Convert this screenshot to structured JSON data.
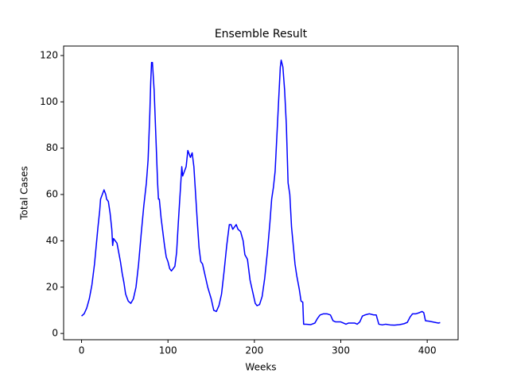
{
  "chart_data": {
    "type": "line",
    "title": "Ensemble Result",
    "x_label": "Weeks",
    "y_label": "Total Cases",
    "x": [
      0,
      3,
      6,
      9,
      12,
      15,
      17,
      19,
      21,
      22,
      24,
      26,
      28,
      29,
      31,
      33,
      35,
      36,
      37,
      39,
      41,
      43,
      45,
      47,
      49,
      51,
      54,
      57,
      60,
      63,
      66,
      69,
      72,
      75,
      77,
      79,
      80,
      81,
      82,
      84,
      86,
      88,
      89,
      90,
      92,
      94,
      96,
      98,
      100,
      102,
      104,
      106,
      108,
      110,
      112,
      114,
      116,
      117,
      119,
      121,
      123,
      124,
      126,
      128,
      130,
      132,
      134,
      136,
      138,
      140,
      143,
      146,
      150,
      153,
      156,
      159,
      162,
      165,
      168,
      171,
      173,
      175,
      177,
      179,
      181,
      184,
      187,
      189,
      192,
      195,
      198,
      201,
      203,
      206,
      209,
      212,
      215,
      218,
      220,
      222,
      224,
      226,
      228,
      230,
      231,
      233,
      235,
      237,
      239,
      241,
      243,
      245,
      247,
      249,
      252,
      254,
      256,
      257,
      260,
      265,
      270,
      273,
      276,
      280,
      284,
      288,
      291,
      294,
      297,
      300,
      303,
      306,
      309,
      312,
      316,
      319,
      322,
      325,
      328,
      333,
      338,
      341,
      344,
      348,
      352,
      357,
      362,
      368,
      373,
      377,
      380,
      383,
      387,
      391,
      394,
      396,
      398,
      402,
      406,
      410,
      413,
      415
    ],
    "series": [
      {
        "name": "Ensemble",
        "color": "#0000ff",
        "values": [
          7.5,
          8.5,
          11,
          15,
          21,
          30,
          38,
          46,
          53,
          58,
          60,
          62,
          60,
          58,
          57,
          52,
          45,
          38,
          41,
          40,
          39,
          35,
          31,
          26,
          22,
          17,
          14,
          13,
          15,
          20,
          30,
          43,
          55,
          65,
          75,
          95,
          108,
          117,
          117,
          105,
          85,
          65,
          58,
          58,
          50,
          44,
          38,
          33,
          31,
          28,
          27,
          28,
          29,
          35,
          48,
          60,
          72,
          68,
          70,
          72,
          79,
          78,
          76,
          78,
          72,
          60,
          48,
          37,
          31,
          30,
          25,
          20,
          15,
          10,
          9.5,
          12,
          17,
          27,
          38,
          47,
          47,
          45,
          46,
          47,
          45,
          44,
          40,
          34,
          32,
          23,
          18,
          13,
          12,
          12.5,
          16,
          24,
          35,
          48,
          58,
          63,
          70,
          85,
          100,
          115,
          118,
          115,
          105,
          90,
          65,
          60,
          46,
          38,
          30,
          25,
          19,
          14,
          13.5,
          4,
          4,
          3.8,
          4.5,
          6.5,
          8,
          8.5,
          8.5,
          8,
          5.5,
          5,
          5,
          5,
          4.5,
          4,
          4.5,
          4.5,
          4.5,
          4,
          5,
          7.5,
          8,
          8.5,
          8,
          8,
          4,
          3.7,
          4,
          3.7,
          3.6,
          3.8,
          4.2,
          4.8,
          7,
          8.5,
          8.5,
          9,
          9.5,
          9,
          5.5,
          5.3,
          5,
          4.7,
          4.5,
          4.7
        ]
      }
    ],
    "xlim": [
      -20.75,
      435.75
    ],
    "ylim": [
      -2.7,
      124.1
    ],
    "xticks": [
      0,
      100,
      200,
      300,
      400
    ],
    "yticks": [
      0,
      20,
      40,
      60,
      80,
      100,
      120
    ],
    "grid": false
  }
}
